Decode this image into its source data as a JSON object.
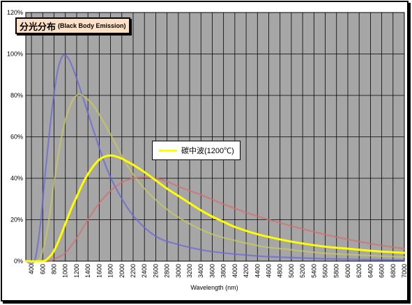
{
  "chart_data": {
    "type": "line",
    "title": "分光分布",
    "subtitle": "(Black Body Emission)",
    "xlabel": "Wavelength (nm)",
    "ylabel": "",
    "xlim": [
      300,
      7000
    ],
    "ylim": [
      0,
      120
    ],
    "x_ticks": [
      400,
      600,
      800,
      1000,
      1200,
      1400,
      1600,
      1800,
      2000,
      2200,
      2400,
      2600,
      2800,
      3000,
      3200,
      3400,
      3600,
      3800,
      4000,
      4200,
      4400,
      4600,
      4800,
      5000,
      5200,
      5400,
      5600,
      5800,
      6000,
      6200,
      6400,
      6600,
      6800,
      7000
    ],
    "y_ticks": [
      0,
      20,
      40,
      60,
      80,
      100,
      120
    ],
    "y_tick_suffix": "%",
    "grid": true,
    "series": [
      {
        "name": "",
        "color": "#6a6ad8",
        "x": [
          300,
          450,
          550,
          650,
          750,
          850,
          950,
          1050,
          1150,
          1300,
          1500,
          1700,
          1900,
          2200,
          2600,
          3000,
          3500,
          4000,
          4500,
          5000,
          5500,
          6000,
          6500,
          7000
        ],
        "values": [
          0,
          0,
          16,
          44,
          70,
          90,
          99,
          98,
          92,
          80,
          63,
          47,
          35,
          22,
          12,
          8,
          5,
          3.4,
          2.3,
          1.7,
          1.2,
          0.9,
          0.7,
          0.5
        ]
      },
      {
        "name": "",
        "color": "#c8c860",
        "x": [
          300,
          500,
          600,
          700,
          800,
          900,
          1000,
          1100,
          1200,
          1300,
          1500,
          1700,
          1900,
          2100,
          2400,
          2800,
          3200,
          3600,
          4000,
          4500,
          5000,
          5500,
          6000,
          6500,
          7000
        ],
        "values": [
          0,
          0,
          5,
          18,
          38,
          55,
          68,
          76,
          80,
          80,
          75,
          66,
          56,
          46,
          35,
          25,
          18,
          13,
          10,
          7,
          5.5,
          4,
          3.2,
          2.6,
          2
        ]
      },
      {
        "name": "",
        "color": "#d07070",
        "x": [
          300,
          700,
          800,
          1000,
          1200,
          1400,
          1600,
          1800,
          2000,
          2200,
          2400,
          2600,
          2800,
          3000,
          3400,
          3800,
          4200,
          4600,
          5000,
          5500,
          6000,
          6500,
          7000
        ],
        "values": [
          0,
          0,
          1,
          4,
          11,
          20,
          28,
          34,
          38,
          40,
          40.5,
          40,
          38.5,
          36,
          32,
          27.5,
          23.5,
          20,
          17,
          13.5,
          10.5,
          8,
          6
        ]
      },
      {
        "name": "碳中波(1200℃)",
        "color": "#ffff00",
        "x": [
          300,
          600,
          700,
          800,
          900,
          1000,
          1100,
          1200,
          1300,
          1400,
          1500,
          1600,
          1700,
          1800,
          1900,
          2000,
          2100,
          2200,
          2400,
          2600,
          2800,
          3000,
          3200,
          3400,
          3600,
          3800,
          4000,
          4400,
          4800,
          5200,
          5600,
          6000,
          6400,
          6800,
          7000
        ],
        "values": [
          0,
          0,
          1.5,
          5,
          11,
          18,
          25,
          31,
          37,
          42,
          46,
          49,
          50.5,
          51,
          50.5,
          49.5,
          48,
          46.5,
          43,
          39,
          35,
          31.5,
          28,
          24.5,
          21.5,
          19,
          16.5,
          13,
          10.5,
          8.5,
          7,
          6,
          5,
          4.3,
          4
        ]
      }
    ],
    "legend": [
      "碳中波(1200℃)"
    ],
    "legend_position": "center"
  }
}
